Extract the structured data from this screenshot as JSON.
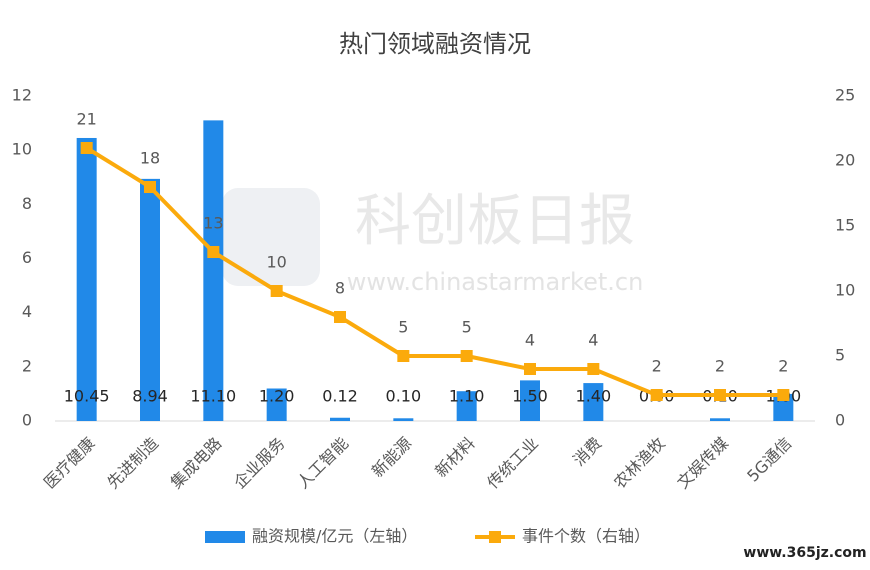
{
  "chart_data": {
    "type": "bar",
    "title": "热门领域融资情况",
    "categories": [
      "医疗健康",
      "先进制造",
      "集成电路",
      "企业服务",
      "人工智能",
      "新能源",
      "新材料",
      "传统工业",
      "消费",
      "农林渔牧",
      "文娱传媒",
      "5G通信"
    ],
    "series": [
      {
        "name": "融资规模/亿元（左轴）",
        "type": "bar",
        "color": "#2189e8",
        "values": [
          10.45,
          8.94,
          11.1,
          1.2,
          0.12,
          0.1,
          1.1,
          1.5,
          1.4,
          0,
          0.1,
          1
        ],
        "value_labels": [
          "10.45",
          "8.94",
          "11.10",
          "1.20",
          "0.12",
          "0.10",
          "1.10",
          "1.50",
          "1.40",
          "0.00",
          "0.10",
          "1.00"
        ]
      },
      {
        "name": "事件个数（右轴）",
        "type": "line",
        "axis": "y2",
        "color": "#fbaa0c",
        "values": [
          21,
          18,
          13,
          10,
          8,
          5,
          5,
          4,
          4,
          2,
          2,
          2
        ]
      }
    ],
    "ylim": [
      0,
      12
    ],
    "yticks": [
      0,
      2,
      4,
      6,
      8,
      10,
      12
    ],
    "y2lim": [
      0,
      25
    ],
    "y2ticks": [
      0,
      5,
      10,
      15,
      20,
      25
    ],
    "grid": false,
    "legend": "bottom",
    "annotations": [
      "科创板日报",
      "www.chinastarmarket.cn",
      "www.365jz.com"
    ]
  }
}
